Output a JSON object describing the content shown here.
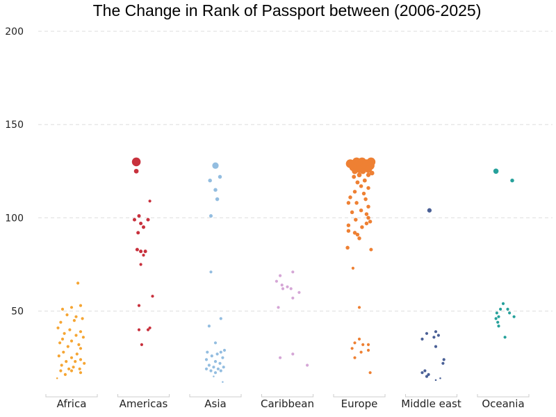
{
  "chart_data": {
    "type": "scatter",
    "title": "The Change in Rank of Passport between (2006-2025)",
    "xlabel": "",
    "ylabel": "",
    "ylim": [
      10,
      200
    ],
    "y_ticks": [
      50,
      100,
      150,
      200
    ],
    "grid": "horizontal dashed",
    "categories": [
      "Africa",
      "Americas",
      "Asia",
      "Caribbean",
      "Europe",
      "Middle east",
      "Oceania"
    ],
    "series": [
      {
        "color": "#F5A533",
        "points": [
          {
            "x": 0.07,
            "y": 65,
            "size": 1
          },
          {
            "x": -0.1,
            "y": 51,
            "size": 1
          },
          {
            "x": 0.0,
            "y": 52,
            "size": 1
          },
          {
            "x": 0.1,
            "y": 53,
            "size": 1
          },
          {
            "x": -0.05,
            "y": 48,
            "size": 1
          },
          {
            "x": 0.05,
            "y": 47,
            "size": 1
          },
          {
            "x": 0.12,
            "y": 46,
            "size": 1
          },
          {
            "x": -0.12,
            "y": 44,
            "size": 1
          },
          {
            "x": 0.03,
            "y": 45,
            "size": 1
          },
          {
            "x": -0.15,
            "y": 41,
            "size": 1
          },
          {
            "x": -0.02,
            "y": 40,
            "size": 1
          },
          {
            "x": 0.1,
            "y": 39,
            "size": 1
          },
          {
            "x": -0.08,
            "y": 38,
            "size": 1
          },
          {
            "x": 0.05,
            "y": 37,
            "size": 1
          },
          {
            "x": 0.13,
            "y": 36,
            "size": 1
          },
          {
            "x": -0.1,
            "y": 35,
            "size": 1
          },
          {
            "x": 0.0,
            "y": 34,
            "size": 1
          },
          {
            "x": -0.13,
            "y": 33,
            "size": 1
          },
          {
            "x": 0.08,
            "y": 32,
            "size": 1
          },
          {
            "x": -0.04,
            "y": 31,
            "size": 1
          },
          {
            "x": 0.1,
            "y": 30,
            "size": 1
          },
          {
            "x": -0.09,
            "y": 28,
            "size": 1
          },
          {
            "x": 0.06,
            "y": 27,
            "size": 1
          },
          {
            "x": -0.14,
            "y": 26,
            "size": 1
          },
          {
            "x": 0.0,
            "y": 25,
            "size": 1
          },
          {
            "x": 0.1,
            "y": 24,
            "size": 1
          },
          {
            "x": -0.06,
            "y": 23,
            "size": 1
          },
          {
            "x": 0.04,
            "y": 23,
            "size": 1
          },
          {
            "x": 0.14,
            "y": 22,
            "size": 1
          },
          {
            "x": -0.11,
            "y": 21,
            "size": 1
          },
          {
            "x": 0.02,
            "y": 20,
            "size": 1
          },
          {
            "x": -0.03,
            "y": 19,
            "size": 1
          },
          {
            "x": 0.09,
            "y": 19,
            "size": 1
          },
          {
            "x": -0.12,
            "y": 18,
            "size": 1
          },
          {
            "x": 0.0,
            "y": 18,
            "size": 1
          },
          {
            "x": 0.1,
            "y": 17,
            "size": 1
          },
          {
            "x": -0.07,
            "y": 16,
            "size": 1
          },
          {
            "x": -0.16,
            "y": 14,
            "size": 0.6
          }
        ]
      },
      {
        "color": "#C8313D",
        "points": [
          {
            "x": -0.08,
            "y": 130,
            "size": 3
          },
          {
            "x": -0.08,
            "y": 125,
            "size": 1.6
          },
          {
            "x": 0.07,
            "y": 109,
            "size": 1
          },
          {
            "x": -0.05,
            "y": 101,
            "size": 1.2
          },
          {
            "x": 0.05,
            "y": 99,
            "size": 1.2
          },
          {
            "x": -0.1,
            "y": 99,
            "size": 1.2
          },
          {
            "x": -0.03,
            "y": 97,
            "size": 1.2
          },
          {
            "x": 0.0,
            "y": 95,
            "size": 1.2
          },
          {
            "x": -0.06,
            "y": 92,
            "size": 1.2
          },
          {
            "x": -0.07,
            "y": 83,
            "size": 1.2
          },
          {
            "x": -0.03,
            "y": 82,
            "size": 1.2
          },
          {
            "x": 0.02,
            "y": 82,
            "size": 1.2
          },
          {
            "x": 0.0,
            "y": 80,
            "size": 1
          },
          {
            "x": -0.03,
            "y": 75,
            "size": 1
          },
          {
            "x": 0.1,
            "y": 58,
            "size": 1
          },
          {
            "x": -0.05,
            "y": 53,
            "size": 1
          },
          {
            "x": 0.07,
            "y": 41,
            "size": 1
          },
          {
            "x": 0.05,
            "y": 40,
            "size": 1
          },
          {
            "x": -0.05,
            "y": 40,
            "size": 1
          },
          {
            "x": -0.02,
            "y": 32,
            "size": 1
          }
        ]
      },
      {
        "color": "#93BDE0",
        "points": [
          {
            "x": 0.0,
            "y": 128,
            "size": 2.2
          },
          {
            "x": 0.05,
            "y": 122,
            "size": 1.3
          },
          {
            "x": -0.06,
            "y": 120,
            "size": 1.3
          },
          {
            "x": 0.0,
            "y": 115,
            "size": 1.3
          },
          {
            "x": 0.02,
            "y": 110,
            "size": 1.3
          },
          {
            "x": -0.05,
            "y": 101,
            "size": 1.2
          },
          {
            "x": -0.05,
            "y": 71,
            "size": 1
          },
          {
            "x": 0.06,
            "y": 46,
            "size": 1
          },
          {
            "x": -0.07,
            "y": 42,
            "size": 1
          },
          {
            "x": 0.0,
            "y": 33,
            "size": 1
          },
          {
            "x": 0.1,
            "y": 29,
            "size": 1
          },
          {
            "x": 0.06,
            "y": 28,
            "size": 1
          },
          {
            "x": -0.09,
            "y": 28,
            "size": 1
          },
          {
            "x": 0.02,
            "y": 27,
            "size": 1
          },
          {
            "x": -0.04,
            "y": 26,
            "size": 1
          },
          {
            "x": 0.08,
            "y": 25,
            "size": 1
          },
          {
            "x": -0.1,
            "y": 24,
            "size": 1
          },
          {
            "x": 0.0,
            "y": 23,
            "size": 1
          },
          {
            "x": 0.05,
            "y": 22,
            "size": 1
          },
          {
            "x": -0.07,
            "y": 21,
            "size": 1
          },
          {
            "x": -0.02,
            "y": 20,
            "size": 1
          },
          {
            "x": 0.09,
            "y": 20,
            "size": 1
          },
          {
            "x": 0.03,
            "y": 19,
            "size": 1
          },
          {
            "x": -0.1,
            "y": 19,
            "size": 1
          },
          {
            "x": -0.05,
            "y": 18,
            "size": 1
          },
          {
            "x": 0.06,
            "y": 18,
            "size": 1
          },
          {
            "x": 0.0,
            "y": 17,
            "size": 1
          },
          {
            "x": -0.02,
            "y": 15,
            "size": 0.6
          },
          {
            "x": 0.08,
            "y": 12,
            "size": 0.6
          }
        ]
      },
      {
        "color": "#D5A6D6",
        "points": [
          {
            "x": 0.06,
            "y": 71,
            "size": 1
          },
          {
            "x": -0.08,
            "y": 69,
            "size": 1
          },
          {
            "x": -0.12,
            "y": 66,
            "size": 1
          },
          {
            "x": -0.06,
            "y": 64,
            "size": 1
          },
          {
            "x": 0.0,
            "y": 63,
            "size": 1
          },
          {
            "x": -0.05,
            "y": 62,
            "size": 1
          },
          {
            "x": 0.04,
            "y": 62,
            "size": 1
          },
          {
            "x": 0.13,
            "y": 60,
            "size": 1
          },
          {
            "x": 0.06,
            "y": 57,
            "size": 1
          },
          {
            "x": -0.1,
            "y": 52,
            "size": 1
          },
          {
            "x": 0.06,
            "y": 27,
            "size": 1
          },
          {
            "x": -0.08,
            "y": 25,
            "size": 1
          },
          {
            "x": 0.22,
            "y": 21,
            "size": 1
          }
        ]
      },
      {
        "color": "#EE8033",
        "points": [
          {
            "x": -0.03,
            "y": 130,
            "size": 3
          },
          {
            "x": 0.03,
            "y": 130,
            "size": 3
          },
          {
            "x": 0.13,
            "y": 130,
            "size": 3
          },
          {
            "x": -0.1,
            "y": 129,
            "size": 3
          },
          {
            "x": 0.08,
            "y": 129,
            "size": 3
          },
          {
            "x": -0.02,
            "y": 128,
            "size": 3
          },
          {
            "x": 0.12,
            "y": 128,
            "size": 3
          },
          {
            "x": 0.05,
            "y": 127,
            "size": 2.5
          },
          {
            "x": -0.07,
            "y": 127,
            "size": 2.5
          },
          {
            "x": 0.0,
            "y": 126,
            "size": 2.5
          },
          {
            "x": 0.1,
            "y": 126,
            "size": 2.5
          },
          {
            "x": -0.05,
            "y": 125,
            "size": 2
          },
          {
            "x": 0.04,
            "y": 125,
            "size": 2
          },
          {
            "x": 0.14,
            "y": 124,
            "size": 1.6
          },
          {
            "x": 0.0,
            "y": 123,
            "size": 1.6
          },
          {
            "x": 0.1,
            "y": 123,
            "size": 1.5
          },
          {
            "x": -0.06,
            "y": 122,
            "size": 1.4
          },
          {
            "x": 0.06,
            "y": 120,
            "size": 1.4
          },
          {
            "x": -0.02,
            "y": 119,
            "size": 1.4
          },
          {
            "x": 0.02,
            "y": 117,
            "size": 1.3
          },
          {
            "x": 0.1,
            "y": 116,
            "size": 1.3
          },
          {
            "x": -0.05,
            "y": 114,
            "size": 1.3
          },
          {
            "x": 0.05,
            "y": 113,
            "size": 1.3
          },
          {
            "x": -0.1,
            "y": 111,
            "size": 1.3
          },
          {
            "x": 0.07,
            "y": 110,
            "size": 1.3
          },
          {
            "x": -0.12,
            "y": 108,
            "size": 1.3
          },
          {
            "x": -0.03,
            "y": 108,
            "size": 1.3
          },
          {
            "x": 0.1,
            "y": 106,
            "size": 1.3
          },
          {
            "x": 0.02,
            "y": 104,
            "size": 1.3
          },
          {
            "x": -0.08,
            "y": 103,
            "size": 1.3
          },
          {
            "x": 0.08,
            "y": 102,
            "size": 1.3
          },
          {
            "x": 0.1,
            "y": 100,
            "size": 1.3
          },
          {
            "x": -0.04,
            "y": 99,
            "size": 1.3
          },
          {
            "x": 0.12,
            "y": 98,
            "size": 1.3
          },
          {
            "x": 0.08,
            "y": 97,
            "size": 1.3
          },
          {
            "x": -0.12,
            "y": 96,
            "size": 1.3
          },
          {
            "x": 0.03,
            "y": 95,
            "size": 1.3
          },
          {
            "x": -0.12,
            "y": 93,
            "size": 1.3
          },
          {
            "x": -0.05,
            "y": 92,
            "size": 1.3
          },
          {
            "x": -0.02,
            "y": 91,
            "size": 1.3
          },
          {
            "x": 0.0,
            "y": 89,
            "size": 1.3
          },
          {
            "x": -0.13,
            "y": 84,
            "size": 1.3
          },
          {
            "x": 0.13,
            "y": 83,
            "size": 1.2
          },
          {
            "x": -0.07,
            "y": 73,
            "size": 1
          },
          {
            "x": 0.0,
            "y": 52,
            "size": 1
          },
          {
            "x": 0.0,
            "y": 35,
            "size": 1
          },
          {
            "x": -0.05,
            "y": 33,
            "size": 1
          },
          {
            "x": 0.04,
            "y": 32,
            "size": 1
          },
          {
            "x": 0.1,
            "y": 32,
            "size": 1
          },
          {
            "x": -0.08,
            "y": 30,
            "size": 1
          },
          {
            "x": 0.1,
            "y": 29,
            "size": 1
          },
          {
            "x": 0.02,
            "y": 28,
            "size": 1
          },
          {
            "x": -0.05,
            "y": 25,
            "size": 1
          },
          {
            "x": 0.12,
            "y": 17,
            "size": 1
          }
        ]
      },
      {
        "color": "#4A6096",
        "points": [
          {
            "x": -0.02,
            "y": 104,
            "size": 1.5
          },
          {
            "x": 0.05,
            "y": 39,
            "size": 1
          },
          {
            "x": -0.05,
            "y": 38,
            "size": 1
          },
          {
            "x": 0.08,
            "y": 37,
            "size": 1
          },
          {
            "x": 0.03,
            "y": 36,
            "size": 1
          },
          {
            "x": -0.1,
            "y": 35,
            "size": 1
          },
          {
            "x": 0.05,
            "y": 31,
            "size": 1
          },
          {
            "x": 0.14,
            "y": 24,
            "size": 1
          },
          {
            "x": 0.13,
            "y": 22,
            "size": 1
          },
          {
            "x": -0.07,
            "y": 18,
            "size": 1
          },
          {
            "x": -0.1,
            "y": 17,
            "size": 1
          },
          {
            "x": -0.03,
            "y": 16,
            "size": 1
          },
          {
            "x": -0.05,
            "y": 15,
            "size": 1
          },
          {
            "x": 0.1,
            "y": 14,
            "size": 0.6
          },
          {
            "x": 0.05,
            "y": 13,
            "size": 0.6
          }
        ]
      },
      {
        "color": "#26A19B",
        "points": [
          {
            "x": -0.08,
            "y": 125,
            "size": 1.8
          },
          {
            "x": 0.1,
            "y": 120,
            "size": 1.3
          },
          {
            "x": 0.0,
            "y": 54,
            "size": 1
          },
          {
            "x": -0.03,
            "y": 51,
            "size": 1
          },
          {
            "x": 0.05,
            "y": 51,
            "size": 1
          },
          {
            "x": 0.07,
            "y": 49,
            "size": 1
          },
          {
            "x": -0.07,
            "y": 49,
            "size": 1
          },
          {
            "x": -0.05,
            "y": 47,
            "size": 1
          },
          {
            "x": 0.12,
            "y": 47,
            "size": 1
          },
          {
            "x": -0.08,
            "y": 46,
            "size": 1
          },
          {
            "x": -0.06,
            "y": 44,
            "size": 1
          },
          {
            "x": -0.05,
            "y": 42,
            "size": 1
          },
          {
            "x": 0.02,
            "y": 36,
            "size": 1
          }
        ]
      }
    ]
  }
}
